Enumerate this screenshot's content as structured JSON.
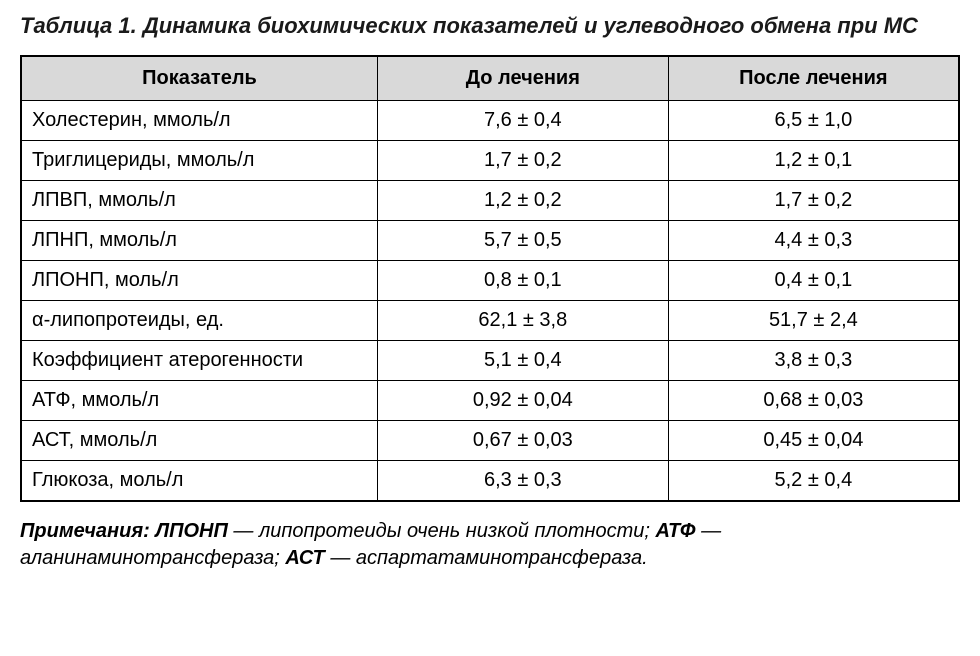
{
  "title": "Таблица 1. Динамика биохимических показателей и углеводного обмена при МС",
  "table": {
    "type": "table",
    "background_color": "#ffffff",
    "header_bg": "#d9d9d9",
    "border_color": "#000000",
    "header_fontsize": 20,
    "cell_fontsize": 20,
    "col_widths_pct": [
      38,
      31,
      31
    ],
    "columns": [
      "Показатель",
      "До лечения",
      "После лечения"
    ],
    "rows": [
      [
        "Холестерин, ммоль/л",
        "7,6 ± 0,4",
        "6,5 ± 1,0"
      ],
      [
        "Триглицериды, ммоль/л",
        "1,7 ± 0,2",
        "1,2 ± 0,1"
      ],
      [
        "ЛПВП, ммоль/л",
        "1,2 ± 0,2",
        "1,7 ± 0,2"
      ],
      [
        "ЛПНП, ммоль/л",
        "5,7 ± 0,5",
        "4,4 ± 0,3"
      ],
      [
        "ЛПОНП, моль/л",
        "0,8 ± 0,1",
        "0,4 ± 0,1"
      ],
      [
        "α-липопротеиды, ед.",
        "62,1 ± 3,8",
        "51,7 ± 2,4"
      ],
      [
        "Коэффициент атерогенности",
        "5,1 ± 0,4",
        "3,8 ± 0,3"
      ],
      [
        "АТФ, ммоль/л",
        "0,92 ± 0,04",
        "0,68 ± 0,03"
      ],
      [
        "АСТ, ммоль/л",
        "0,67 ± 0,03",
        "0,45 ± 0,04"
      ],
      [
        "Глюкоза, моль/л",
        "6,3 ± 0,3",
        "5,2 ± 0,4"
      ]
    ]
  },
  "notes": {
    "prefix": "Примечания:",
    "items": [
      {
        "abbr": "ЛПОНП",
        "def": "липопротеиды очень низкой плотности"
      },
      {
        "abbr": "АТФ",
        "def": "аланинаминотрансфераза"
      },
      {
        "abbr": "АСТ",
        "def": "аспартатаминотрансфераза"
      }
    ],
    "fontsize": 20
  },
  "styling": {
    "title_fontsize": 22,
    "title_fontstyle": "bold italic",
    "page_bg": "#ffffff",
    "text_color": "#000000"
  }
}
